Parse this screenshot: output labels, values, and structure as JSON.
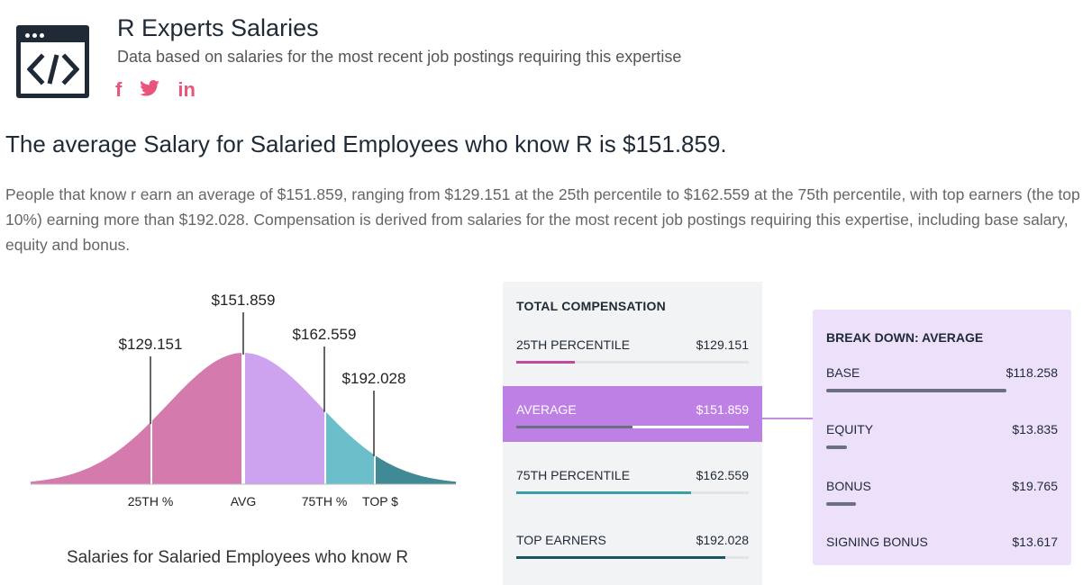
{
  "header": {
    "title": "R Experts Salaries",
    "subtitle": "Data based on salaries for the most recent job postings requiring this expertise",
    "social": [
      {
        "icon": "facebook-icon",
        "glyph": "f"
      },
      {
        "icon": "twitter-icon",
        "glyph": "🐦"
      },
      {
        "icon": "linkedin-icon",
        "glyph": "in"
      }
    ]
  },
  "headline": "The average Salary for Salaried Employees who know R is $151.859.",
  "description": "People that know r earn an average of $151.859, ranging from $129.151 at the 25th percentile to $162.559 at the 75th percentile, with top earners (the top 10%) earning more than $192.028. Compensation is derived from salaries for the most recent job postings requiring this expertise, including base salary, equity and bonus.",
  "chart_data": {
    "type": "area",
    "title": "",
    "caption": "Salaries for Salaried Employees who know R",
    "markers": [
      {
        "value_label": "$129.151",
        "axis_label": "25TH %",
        "value": 129151
      },
      {
        "value_label": "$151.859",
        "axis_label": "AVG",
        "value": 151859
      },
      {
        "value_label": "$162.559",
        "axis_label": "75TH %",
        "value": 162559
      },
      {
        "value_label": "$192.028",
        "axis_label": "TOP $",
        "value": 192028
      }
    ],
    "region_colors": [
      "#d47aad",
      "#cda2ef",
      "#6abfcb",
      "#3f8a94"
    ]
  },
  "compensation": {
    "title": "TOTAL COMPENSATION",
    "rows": [
      {
        "label": "25TH PERCENTILE",
        "value": "$129.151",
        "fraction": 0.25,
        "color": "#c24a9e"
      },
      {
        "label": "AVERAGE",
        "value": "$151.859",
        "fraction": 0.5,
        "color": "#6a6f84"
      },
      {
        "label": "75TH PERCENTILE",
        "value": "$162.559",
        "fraction": 0.75,
        "color": "#3aa0a6"
      },
      {
        "label": "TOP EARNERS",
        "value": "$192.028",
        "fraction": 0.9,
        "color": "#1a5566"
      }
    ]
  },
  "breakdown": {
    "title": "BREAK DOWN: AVERAGE",
    "rows": [
      {
        "label": "BASE",
        "value": "$118.258",
        "fraction": 0.78
      },
      {
        "label": "EQUITY",
        "value": "$13.835",
        "fraction": 0.09
      },
      {
        "label": "BONUS",
        "value": "$19.765",
        "fraction": 0.13
      },
      {
        "label": "SIGNING BONUS",
        "value": "$13.617",
        "fraction": 0.0
      }
    ]
  }
}
